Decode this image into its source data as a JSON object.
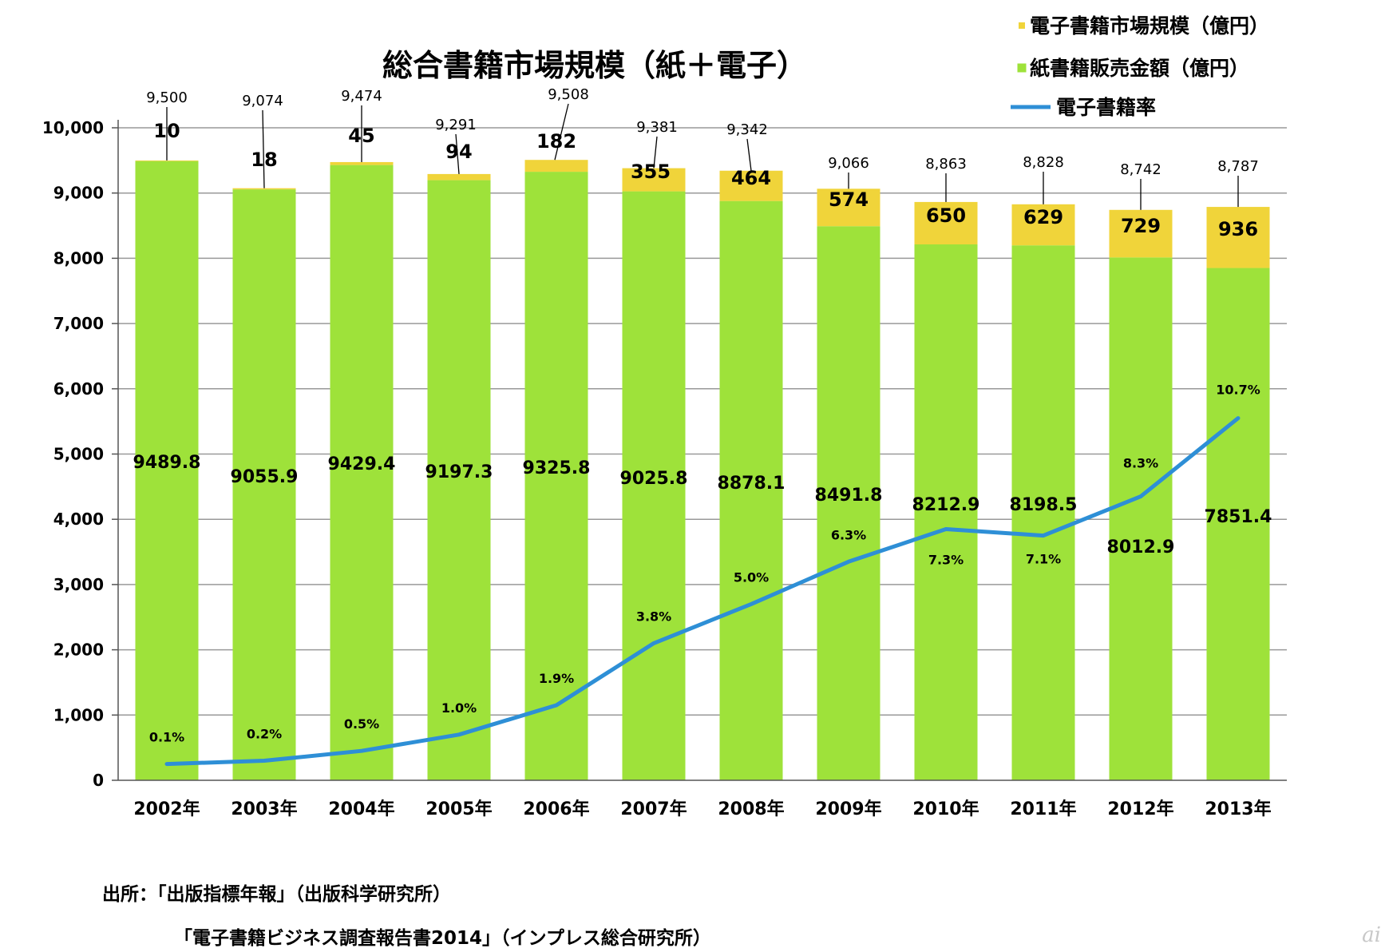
{
  "chart_data": {
    "type": "bar",
    "title": "総合書籍市場規模（紙＋電子）",
    "categories": [
      "2002年",
      "2003年",
      "2004年",
      "2005年",
      "2006年",
      "2007年",
      "2008年",
      "2009年",
      "2010年",
      "2011年",
      "2012年",
      "2013年"
    ],
    "ylim": [
      0,
      10000
    ],
    "yticks": [
      "0",
      "1,000",
      "2,000",
      "3,000",
      "4,000",
      "5,000",
      "6,000",
      "7,000",
      "8,000",
      "9,000",
      "10,000"
    ],
    "grid": true,
    "legend_position": "top-right",
    "series": [
      {
        "name": "紙書籍販売金額（億円）",
        "kind": "bar",
        "stack": "main",
        "color": "#9ee23a",
        "values": [
          9489.8,
          9055.9,
          9429.4,
          9197.3,
          9325.8,
          9025.8,
          8878.1,
          8491.8,
          8212.9,
          8198.5,
          8012.9,
          7851.4
        ],
        "labels": [
          "9489.8",
          "9055.9",
          "9429.4",
          "9197.3",
          "9325.8",
          "9025.8",
          "8878.1",
          "8491.8",
          "8212.9",
          "8198.5",
          "8012.9",
          "7851.4"
        ]
      },
      {
        "name": "電子書籍市場規模（億円）",
        "kind": "bar",
        "stack": "main",
        "color": "#f0d43a",
        "values": [
          10,
          18,
          45,
          94,
          182,
          355,
          464,
          574,
          650,
          629,
          729,
          936
        ],
        "labels": [
          "10",
          "18",
          "45",
          "94",
          "182",
          "355",
          "464",
          "574",
          "650",
          "629",
          "729",
          "936"
        ]
      },
      {
        "name": "電子書籍率",
        "kind": "line",
        "color": "#2e8fd6",
        "values": [
          0.1,
          0.2,
          0.5,
          1.0,
          1.9,
          3.8,
          5.0,
          6.3,
          7.3,
          7.1,
          8.3,
          10.7
        ],
        "labels": [
          "0.1%",
          "0.2%",
          "0.5%",
          "1.0%",
          "1.9%",
          "3.8%",
          "5.0%",
          "6.3%",
          "7.3%",
          "7.1%",
          "8.3%",
          "10.7%"
        ]
      }
    ],
    "totals": [
      "9,500",
      "9,074",
      "9,474",
      "9,291",
      "9,508",
      "9,381",
      "9,342",
      "9,066",
      "8,863",
      "8,828",
      "8,742",
      "8,787"
    ]
  },
  "sources": {
    "line1": "出所：「出版指標年報」（出版科学研究所）",
    "line2": "「電子書籍ビジネス調査報告書2014」（インプレス総合研究所）"
  },
  "watermark": "ai"
}
